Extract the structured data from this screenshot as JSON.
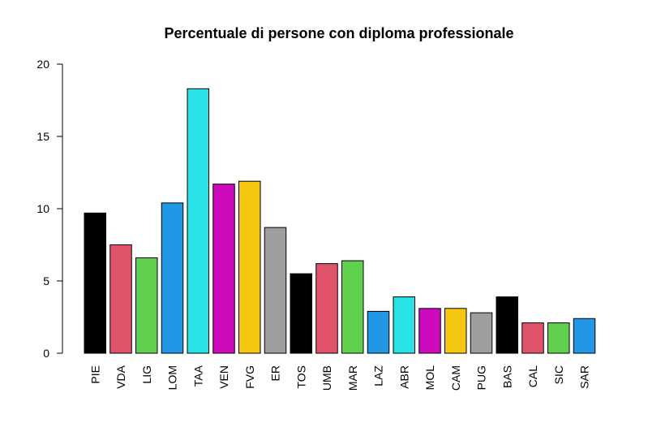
{
  "chart_data": {
    "type": "bar",
    "title": "Percentuale di persone con diploma professionale",
    "xlabel": "",
    "ylabel": "",
    "ylim": [
      0,
      20
    ],
    "yticks": [
      0,
      5,
      10,
      15,
      20
    ],
    "grid": false,
    "categories": [
      "PIE",
      "VDA",
      "LIG",
      "LOM",
      "TAA",
      "VEN",
      "FVG",
      "ER",
      "TOS",
      "UMB",
      "MAR",
      "LAZ",
      "ABR",
      "MOL",
      "CAM",
      "PUG",
      "BAS",
      "CAL",
      "SIC",
      "SAR"
    ],
    "values": [
      9.7,
      7.5,
      6.6,
      10.4,
      18.3,
      11.7,
      11.9,
      8.7,
      5.5,
      6.2,
      6.4,
      2.9,
      3.9,
      3.1,
      3.1,
      2.8,
      3.9,
      2.1,
      2.1,
      2.4
    ],
    "colors": [
      "#000000",
      "#DF536B",
      "#61D04F",
      "#2297E6",
      "#28E2E5",
      "#CD0BBC",
      "#F5C710",
      "#9E9E9E",
      "#000000",
      "#DF536B",
      "#61D04F",
      "#2297E6",
      "#28E2E5",
      "#CD0BBC",
      "#F5C710",
      "#9E9E9E",
      "#000000",
      "#DF536B",
      "#61D04F",
      "#2297E6"
    ]
  }
}
